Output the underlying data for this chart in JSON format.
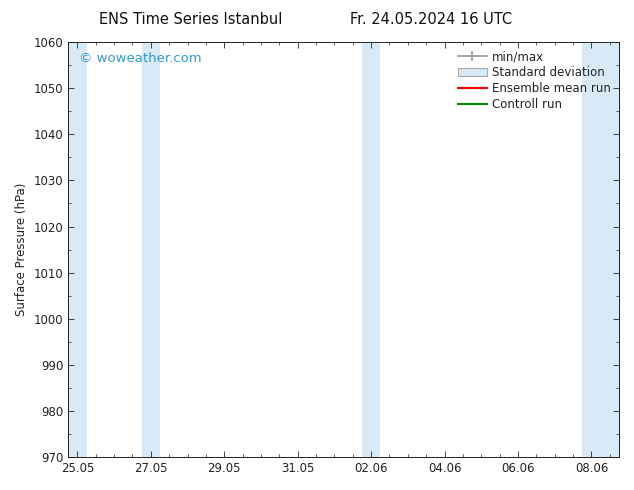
{
  "title_left": "ENS Time Series Istanbul",
  "title_right": "Fr. 24.05.2024 16 UTC",
  "ylabel": "Surface Pressure (hPa)",
  "ylim": [
    970,
    1060
  ],
  "yticks": [
    970,
    980,
    990,
    1000,
    1010,
    1020,
    1030,
    1040,
    1050,
    1060
  ],
  "x_tick_labels": [
    "25.05",
    "27.05",
    "29.05",
    "31.05",
    "02.06",
    "04.06",
    "06.06",
    "08.06"
  ],
  "x_tick_positions": [
    0,
    2,
    4,
    6,
    8,
    10,
    12,
    14
  ],
  "x_min": -0.25,
  "x_max": 14.75,
  "watermark": "© woweather.com",
  "watermark_color": "#3399cc",
  "background_color": "#ffffff",
  "plot_bg_color": "#ffffff",
  "shaded_bands": [
    {
      "x_start": -0.25,
      "x_end": 0.25,
      "color": "#d8eaf7"
    },
    {
      "x_start": 1.75,
      "x_end": 2.25,
      "color": "#d8eaf7"
    },
    {
      "x_start": 7.75,
      "x_end": 8.25,
      "color": "#d8eaf7"
    },
    {
      "x_start": 13.75,
      "x_end": 14.75,
      "color": "#d8eaf7"
    }
  ],
  "legend_items": [
    {
      "label": "min/max",
      "type": "errorbar",
      "color": "#999999"
    },
    {
      "label": "Standard deviation",
      "type": "box",
      "facecolor": "#d8eaf7",
      "edgecolor": "#aaaaaa"
    },
    {
      "label": "Ensemble mean run",
      "type": "line",
      "color": "#ff0000"
    },
    {
      "label": "Controll run",
      "type": "line",
      "color": "#008800"
    }
  ],
  "font_size": 8.5,
  "title_font_size": 10.5,
  "axis_color": "#222222",
  "grid_color": "#cccccc",
  "tick_label_font_size": 8.5
}
